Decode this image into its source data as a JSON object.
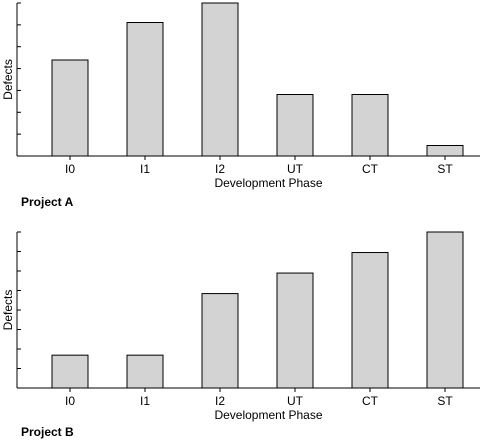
{
  "chart_data": [
    {
      "type": "bar",
      "panel_label": "Project A",
      "categories": [
        "I0",
        "I1",
        "I2",
        "UT",
        "CT",
        "ST"
      ],
      "values": [
        6.4,
        8.9,
        10.2,
        4.1,
        4.1,
        0.7
      ],
      "ylim": [
        0,
        10.2
      ],
      "xlabel": "Development Phase",
      "ylabel": "Defects",
      "y_tick_count": 7,
      "y_tick_labels": "none",
      "grid": false,
      "bar_color": "#d3d3d3",
      "edge_color": "#000000"
    },
    {
      "type": "bar",
      "panel_label": "Project B",
      "categories": [
        "I0",
        "I1",
        "I2",
        "UT",
        "CT",
        "ST"
      ],
      "values": [
        1.6,
        1.6,
        4.6,
        5.6,
        6.6,
        7.6
      ],
      "ylim": [
        0,
        7.6
      ],
      "xlabel": "Development Phase",
      "ylabel": "Defects",
      "y_tick_count": 8,
      "y_tick_labels": "none",
      "grid": false,
      "bar_color": "#d3d3d3",
      "edge_color": "#000000"
    }
  ]
}
